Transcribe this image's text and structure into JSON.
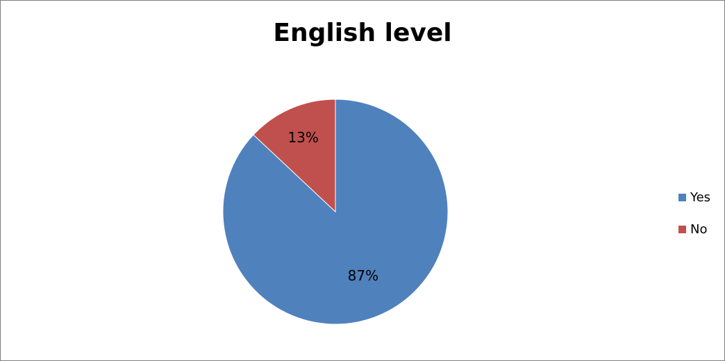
{
  "chart_data": {
    "type": "pie",
    "title": "English level",
    "categories": [
      "Yes",
      "No"
    ],
    "values": [
      87,
      13
    ],
    "value_labels": [
      "87%",
      "13%"
    ],
    "colors": [
      "#4F81BD",
      "#C0504D"
    ],
    "legend_position": "right",
    "start_angle": "12 o'clock, clockwise"
  }
}
